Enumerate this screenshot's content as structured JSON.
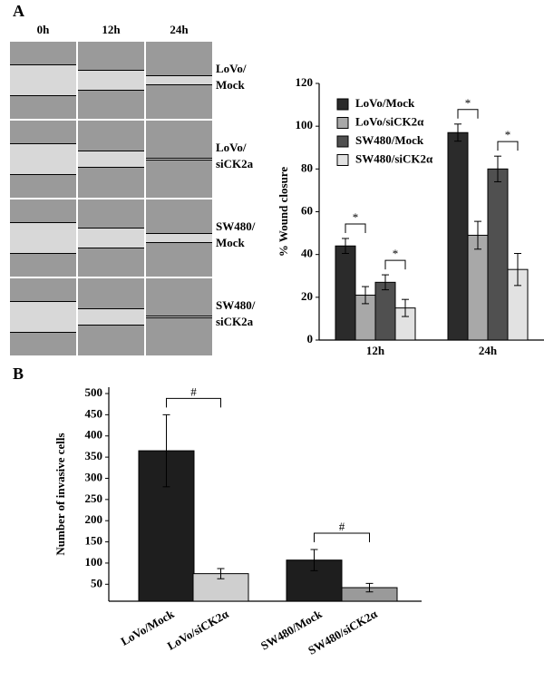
{
  "panel_labels": [
    "A",
    "B"
  ],
  "micrographs": {
    "columns": [
      "0h",
      "12h",
      "24h"
    ],
    "rows": [
      [
        "LoVo/",
        "Mock"
      ],
      [
        "LoVo/",
        "siCK2a"
      ],
      [
        "SW480/",
        "Mock"
      ],
      [
        "SW480/",
        "siCK2a"
      ]
    ]
  },
  "chart_data": [
    {
      "type": "bar",
      "y_label": "% Wound closure",
      "categories": [
        "12h",
        "24h"
      ],
      "series": [
        {
          "name": "LoVo/Mock",
          "color": "#2b2b2b",
          "values": [
            44,
            97
          ],
          "errors": [
            3.5,
            4
          ]
        },
        {
          "name": "LoVo/siCK2α",
          "color": "#a8a8a8",
          "values": [
            21,
            49
          ],
          "errors": [
            4,
            6.5
          ]
        },
        {
          "name": "SW480/Mock",
          "color": "#505050",
          "values": [
            27,
            80
          ],
          "errors": [
            3.5,
            6
          ]
        },
        {
          "name": "SW480/siCK2α",
          "color": "#e2e2e2",
          "values": [
            15,
            33
          ],
          "errors": [
            4,
            7.5
          ]
        }
      ],
      "annotations": [
        "*",
        "*",
        "*",
        "*"
      ],
      "ylim": [
        0,
        120
      ],
      "yticks": [
        0,
        20,
        40,
        60,
        80,
        100,
        120
      ],
      "legend": "top-left"
    },
    {
      "type": "bar",
      "y_label": "Number of invasive cells",
      "categories": [
        "LoVo/Mock",
        "LoVo/siCK2α",
        "SW480/Mock",
        "SW480/siCK2α"
      ],
      "values": [
        365,
        75,
        107,
        42
      ],
      "errors": [
        85,
        12,
        25,
        10
      ],
      "colors": [
        "#1e1e1e",
        "#cfcfcf",
        "#1e1e1e",
        "#9a9a9a"
      ],
      "annotations": [
        "#",
        "#"
      ],
      "ylim": [
        10,
        515
      ],
      "yticks": [
        50,
        100,
        150,
        200,
        250,
        300,
        350,
        400,
        450,
        500
      ]
    }
  ]
}
